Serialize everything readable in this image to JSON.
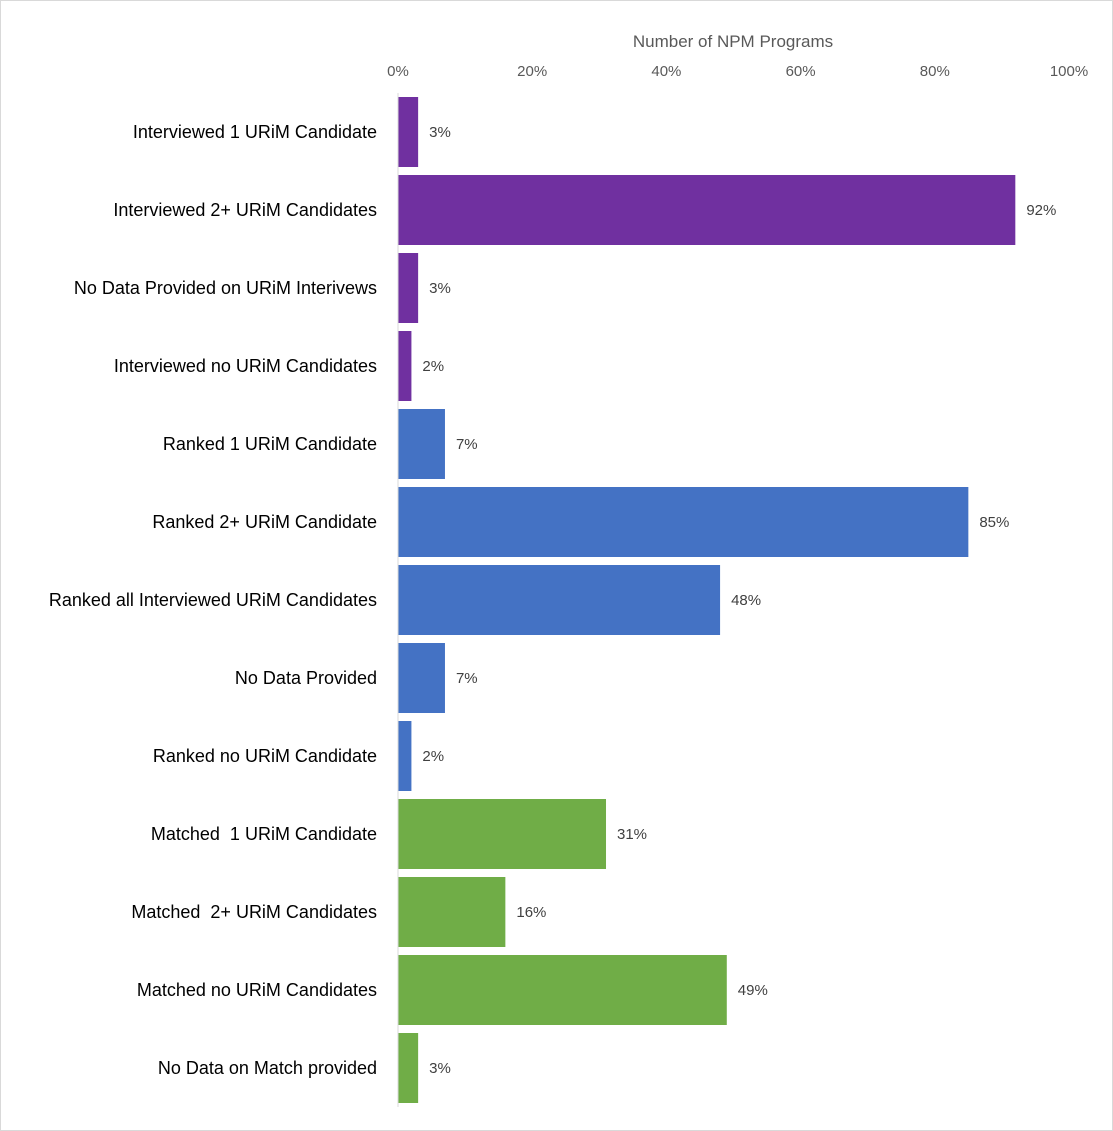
{
  "chart_data": {
    "type": "bar",
    "orientation": "horizontal",
    "axis_title": "Number of NPM Programs",
    "xlabel": "Number of NPM Programs",
    "ylabel": "",
    "xlim": [
      0,
      100
    ],
    "x_ticks": [
      "0%",
      "20%",
      "40%",
      "60%",
      "80%",
      "100%"
    ],
    "x_tick_values": [
      0,
      20,
      40,
      60,
      80,
      100
    ],
    "grid": false,
    "legend": "none",
    "categories": [
      "Interviewed 1 URiM Candidate",
      "Interviewed 2+ URiM Candidates",
      "No Data Provided on URiM Interivews",
      "Interviewed no URiM Candidates",
      "Ranked 1 URiM Candidate",
      "Ranked 2+ URiM Candidate",
      "Ranked all Interviewed URiM Candidates",
      "No Data Provided",
      "Ranked no URiM Candidate",
      "Matched  1 URiM Candidate",
      "Matched  2+ URiM Candidates",
      "Matched no URiM Candidates",
      "No Data on Match provided"
    ],
    "values": [
      3,
      92,
      3,
      2,
      7,
      85,
      48,
      7,
      2,
      31,
      16,
      49,
      3
    ],
    "data_labels": [
      "3%",
      "92%",
      "3%",
      "2%",
      "7%",
      "85%",
      "48%",
      "7%",
      "2%",
      "31%",
      "16%",
      "49%",
      "3%"
    ],
    "groups": [
      {
        "color": "#7030a0",
        "category_indices": [
          0,
          1,
          2,
          3
        ]
      },
      {
        "color": "#4472c4",
        "category_indices": [
          4,
          5,
          6,
          7,
          8
        ]
      },
      {
        "color": "#70ad47",
        "category_indices": [
          9,
          10,
          11,
          12
        ]
      }
    ]
  }
}
